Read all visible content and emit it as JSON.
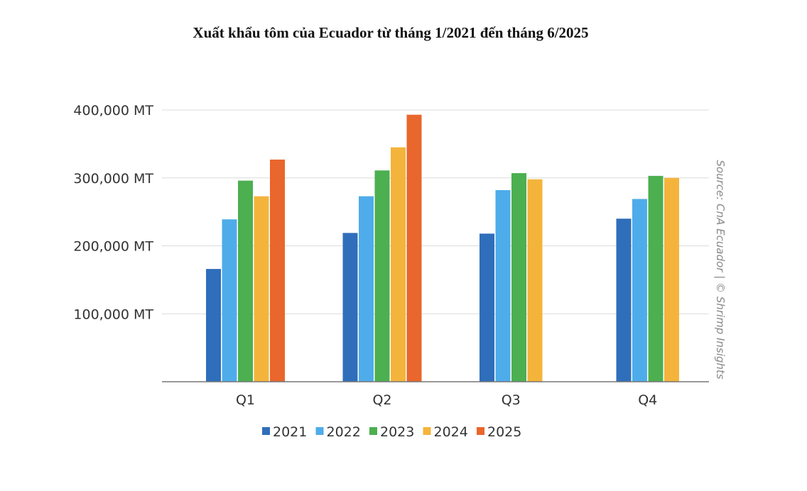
{
  "chart_data": {
    "type": "bar",
    "title": "Xuất khẩu tôm của Ecuador từ tháng 1/2021 đến tháng 6/2025",
    "xlabel": "",
    "ylabel": "",
    "categories": [
      "Q1",
      "Q2",
      "Q3",
      "Q4"
    ],
    "series": [
      {
        "name": "2021",
        "color": "#2f6eba",
        "values": [
          166000,
          219000,
          218000,
          240000
        ]
      },
      {
        "name": "2022",
        "color": "#4facea",
        "values": [
          239000,
          273000,
          282000,
          269000
        ]
      },
      {
        "name": "2023",
        "color": "#4caf50",
        "values": [
          296000,
          311000,
          307000,
          303000
        ]
      },
      {
        "name": "2024",
        "color": "#f4b43c",
        "values": [
          273000,
          345000,
          298000,
          300000
        ]
      },
      {
        "name": "2025",
        "color": "#e9662c",
        "values": [
          327000,
          393000,
          null,
          null
        ]
      }
    ],
    "ylim": [
      0,
      400000
    ],
    "yticks": [
      100000,
      200000,
      300000,
      400000
    ],
    "ytick_labels": [
      "100,000 MT",
      "200,000 MT",
      "300,000 MT",
      "400,000 MT"
    ],
    "grid": true,
    "legend_position": "bottom"
  },
  "source_note": "Source: CnA Ecuador | © Shrimp Insights"
}
